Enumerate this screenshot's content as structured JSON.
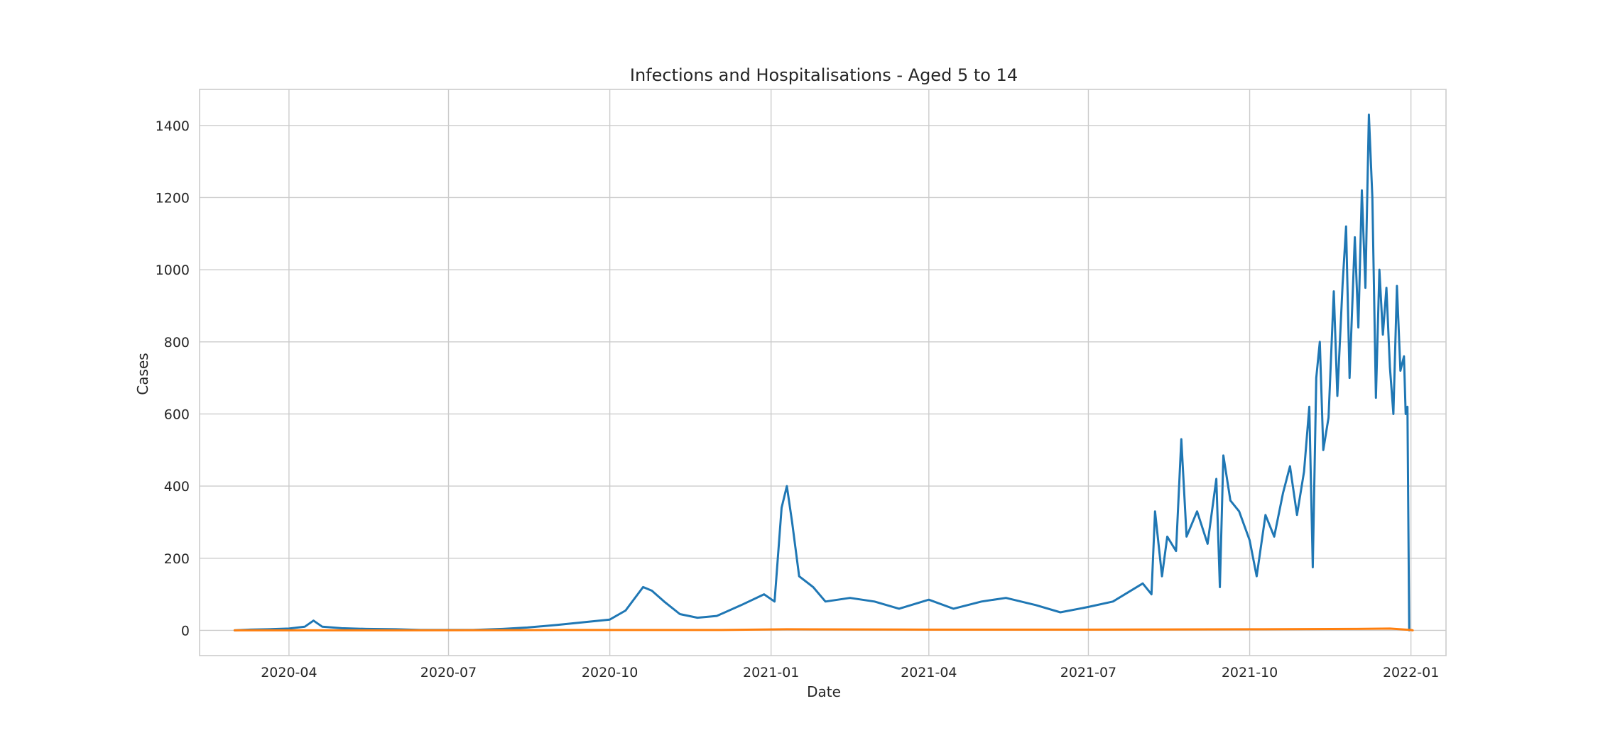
{
  "chart_data": {
    "type": "line",
    "title": "Infections and Hospitalisations - Aged 5 to 14",
    "xlabel": "Date",
    "ylabel": "Cases",
    "x_axis": {
      "scale": "date",
      "range": [
        "2020-02-10",
        "2022-01-21"
      ],
      "tick_values": [
        "2020-04-01",
        "2020-07-01",
        "2020-10-01",
        "2021-01-01",
        "2021-04-01",
        "2021-07-01",
        "2021-10-01",
        "2022-01-01"
      ],
      "tick_labels": [
        "2020-04",
        "2020-07",
        "2020-10",
        "2021-01",
        "2021-04",
        "2021-07",
        "2021-10",
        "2022-01"
      ]
    },
    "y_axis": {
      "range": [
        -70,
        1500
      ],
      "tick_values": [
        0,
        200,
        400,
        600,
        800,
        1000,
        1200,
        1400
      ],
      "tick_labels": [
        "0",
        "200",
        "400",
        "600",
        "800",
        "1000",
        "1200",
        "1400"
      ]
    },
    "grid": true,
    "legend": "none",
    "series": [
      {
        "color": "#1f77b4",
        "points": [
          [
            "2020-03-01",
            0
          ],
          [
            "2020-03-10",
            2
          ],
          [
            "2020-03-20",
            3
          ],
          [
            "2020-04-01",
            5
          ],
          [
            "2020-04-10",
            10
          ],
          [
            "2020-04-15",
            27
          ],
          [
            "2020-04-20",
            10
          ],
          [
            "2020-05-01",
            6
          ],
          [
            "2020-05-15",
            4
          ],
          [
            "2020-06-01",
            3
          ],
          [
            "2020-06-15",
            1
          ],
          [
            "2020-07-01",
            1
          ],
          [
            "2020-07-15",
            1
          ],
          [
            "2020-08-01",
            4
          ],
          [
            "2020-08-15",
            8
          ],
          [
            "2020-09-01",
            15
          ],
          [
            "2020-09-15",
            22
          ],
          [
            "2020-10-01",
            30
          ],
          [
            "2020-10-10",
            55
          ],
          [
            "2020-10-20",
            120
          ],
          [
            "2020-10-25",
            110
          ],
          [
            "2020-11-01",
            80
          ],
          [
            "2020-11-10",
            45
          ],
          [
            "2020-11-20",
            35
          ],
          [
            "2020-12-01",
            40
          ],
          [
            "2020-12-15",
            70
          ],
          [
            "2020-12-28",
            100
          ],
          [
            "2021-01-03",
            80
          ],
          [
            "2021-01-07",
            340
          ],
          [
            "2021-01-10",
            400
          ],
          [
            "2021-01-13",
            300
          ],
          [
            "2021-01-17",
            150
          ],
          [
            "2021-01-25",
            120
          ],
          [
            "2021-02-01",
            80
          ],
          [
            "2021-02-15",
            90
          ],
          [
            "2021-03-01",
            80
          ],
          [
            "2021-03-15",
            60
          ],
          [
            "2021-04-01",
            85
          ],
          [
            "2021-04-15",
            60
          ],
          [
            "2021-05-01",
            80
          ],
          [
            "2021-05-15",
            90
          ],
          [
            "2021-06-01",
            70
          ],
          [
            "2021-06-15",
            50
          ],
          [
            "2021-07-01",
            65
          ],
          [
            "2021-07-15",
            80
          ],
          [
            "2021-08-01",
            130
          ],
          [
            "2021-08-06",
            100
          ],
          [
            "2021-08-08",
            330
          ],
          [
            "2021-08-12",
            150
          ],
          [
            "2021-08-15",
            260
          ],
          [
            "2021-08-20",
            220
          ],
          [
            "2021-08-23",
            530
          ],
          [
            "2021-08-26",
            260
          ],
          [
            "2021-09-01",
            330
          ],
          [
            "2021-09-07",
            240
          ],
          [
            "2021-09-12",
            420
          ],
          [
            "2021-09-14",
            120
          ],
          [
            "2021-09-16",
            485
          ],
          [
            "2021-09-20",
            360
          ],
          [
            "2021-09-25",
            330
          ],
          [
            "2021-10-01",
            250
          ],
          [
            "2021-10-05",
            150
          ],
          [
            "2021-10-10",
            320
          ],
          [
            "2021-10-15",
            260
          ],
          [
            "2021-10-20",
            380
          ],
          [
            "2021-10-24",
            455
          ],
          [
            "2021-10-28",
            320
          ],
          [
            "2021-11-01",
            440
          ],
          [
            "2021-11-04",
            620
          ],
          [
            "2021-11-06",
            175
          ],
          [
            "2021-11-08",
            700
          ],
          [
            "2021-11-10",
            800
          ],
          [
            "2021-11-12",
            500
          ],
          [
            "2021-11-15",
            590
          ],
          [
            "2021-11-18",
            940
          ],
          [
            "2021-11-20",
            650
          ],
          [
            "2021-11-23",
            960
          ],
          [
            "2021-11-25",
            1120
          ],
          [
            "2021-11-27",
            700
          ],
          [
            "2021-11-30",
            1090
          ],
          [
            "2021-12-02",
            840
          ],
          [
            "2021-12-04",
            1220
          ],
          [
            "2021-12-06",
            950
          ],
          [
            "2021-12-08",
            1430
          ],
          [
            "2021-12-10",
            1200
          ],
          [
            "2021-12-12",
            645
          ],
          [
            "2021-12-14",
            1000
          ],
          [
            "2021-12-16",
            820
          ],
          [
            "2021-12-18",
            950
          ],
          [
            "2021-12-20",
            730
          ],
          [
            "2021-12-22",
            600
          ],
          [
            "2021-12-24",
            955
          ],
          [
            "2021-12-26",
            720
          ],
          [
            "2021-12-28",
            760
          ],
          [
            "2021-12-29",
            600
          ],
          [
            "2021-12-30",
            620
          ],
          [
            "2021-12-31",
            0
          ]
        ]
      },
      {
        "color": "#ff7f0e",
        "points": [
          [
            "2020-03-01",
            0
          ],
          [
            "2020-06-01",
            0
          ],
          [
            "2020-09-01",
            1
          ],
          [
            "2020-12-01",
            1
          ],
          [
            "2021-01-10",
            3
          ],
          [
            "2021-04-01",
            2
          ],
          [
            "2021-07-01",
            2
          ],
          [
            "2021-10-01",
            3
          ],
          [
            "2021-12-01",
            4
          ],
          [
            "2021-12-20",
            5
          ],
          [
            "2022-01-01",
            1
          ],
          [
            "2022-01-02",
            0
          ]
        ]
      }
    ]
  }
}
